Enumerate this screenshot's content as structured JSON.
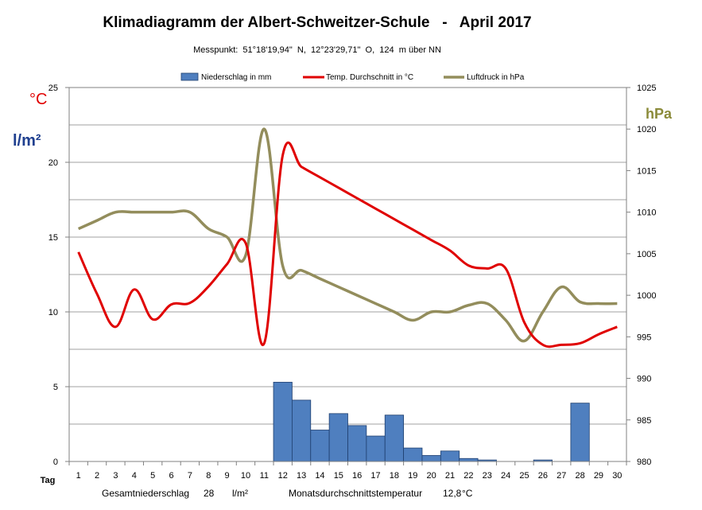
{
  "colors": {
    "precip": "#4f7fbf",
    "precip_stroke": "#1f3f6f",
    "temp": "#e00000",
    "pressure": "#938d5c",
    "grid": "#a0a0a0",
    "unit_blue": "#1f3f8f",
    "unit_olive": "#8b8b3a"
  },
  "chart_data": {
    "type": "bar",
    "title": "Klimadiagramm der Albert-Schweitzer-Schule   -   April 2017",
    "subtitle": "Messpunkt:  51°18'19,94\"  N,  12°23'29,71\"  O,  124  m über NN",
    "x_label": "Tag",
    "x": [
      1,
      2,
      3,
      4,
      5,
      6,
      7,
      8,
      9,
      10,
      11,
      12,
      13,
      14,
      15,
      16,
      17,
      18,
      19,
      20,
      21,
      22,
      23,
      24,
      25,
      26,
      27,
      28,
      29,
      30
    ],
    "x_tick_labels": [
      "1",
      "2",
      "3",
      "4",
      "5",
      "6",
      "7",
      "8",
      "9",
      "10",
      "11",
      "12",
      "13",
      "14",
      "15",
      "16",
      "17",
      "18",
      "19",
      "20",
      "21",
      "22",
      "23",
      "24",
      "25",
      "26",
      "27",
      "28",
      "29",
      "30"
    ],
    "left_axis": {
      "range": [
        0,
        25
      ],
      "ticks": [
        0,
        5,
        10,
        15,
        20,
        25
      ],
      "tick_labels": [
        "0",
        "5",
        "10",
        "15",
        "20",
        "25"
      ],
      "unit_temp": "°C",
      "unit_precip": "l/m²"
    },
    "right_axis": {
      "range": [
        980,
        1025
      ],
      "ticks": [
        980,
        985,
        990,
        995,
        1000,
        1005,
        1010,
        1015,
        1020,
        1025
      ],
      "tick_labels": [
        "980",
        "985",
        "990",
        "995",
        "1000",
        "1005",
        "1010",
        "1015",
        "1020",
        "1025"
      ],
      "unit": "hPa"
    },
    "grid": true,
    "legend_position": "top",
    "series": [
      {
        "name": "Niederschlag in mm",
        "type": "bar",
        "axis": "left",
        "values": [
          0,
          0,
          0,
          0,
          0,
          0,
          0,
          0,
          0,
          0,
          0,
          5.3,
          4.1,
          2.1,
          3.2,
          2.4,
          1.7,
          3.1,
          0.9,
          0.4,
          0.7,
          0.2,
          0.1,
          0,
          0,
          0.1,
          0,
          3.9,
          0,
          0
        ]
      },
      {
        "name": "Temp. Durchschnitt in °C",
        "type": "line",
        "axis": "left",
        "values": [
          14,
          11.2,
          9,
          11.5,
          9.5,
          10.5,
          10.6,
          11.7,
          13.2,
          14.6,
          7.9,
          20.5,
          19.7,
          19,
          18.3,
          17.6,
          16.9,
          16.2,
          15.5,
          14.8,
          14.1,
          13.1,
          12.9,
          12.9,
          9.3,
          7.8,
          7.8,
          7.9,
          8.5,
          9
        ]
      },
      {
        "name": "Luftdruck in hPa",
        "type": "line",
        "axis": "right",
        "values": [
          1008,
          1009,
          1010,
          1010,
          1010,
          1010,
          1010,
          1008,
          1007,
          1004.8,
          1020,
          1003.5,
          1003,
          1002,
          1001,
          1000,
          999,
          998,
          997,
          998,
          998,
          998.8,
          999,
          997,
          994.5,
          998,
          1001,
          999.2,
          999,
          999
        ]
      }
    ],
    "footer": {
      "total_label": "Gesamtniederschlag",
      "total_value": "28",
      "total_unit": "l/m²",
      "avg_label": "Monatsdurchschnittstemperatur",
      "avg_value": "12,8",
      "avg_unit": "°C"
    }
  }
}
